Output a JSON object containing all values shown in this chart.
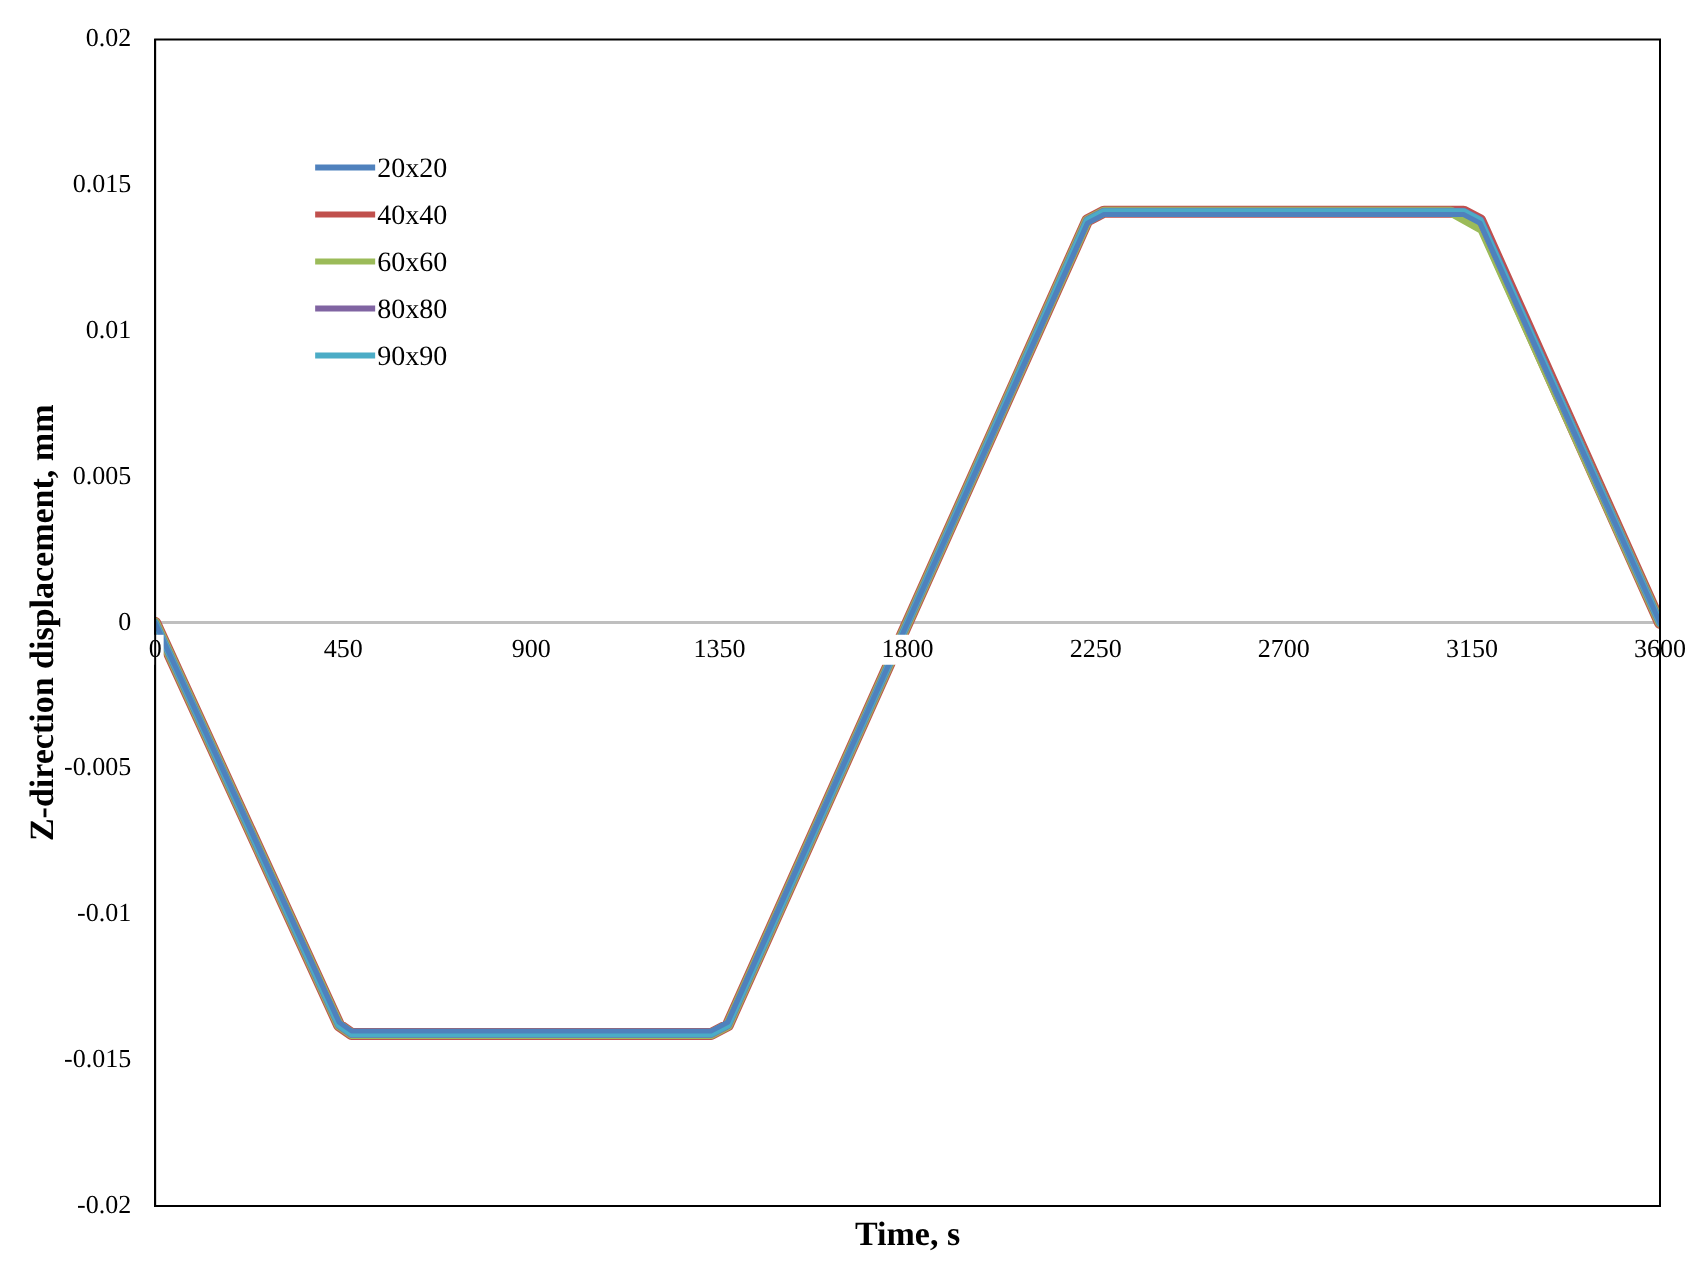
{
  "chart_data": {
    "type": "line",
    "xlabel": "Time, s",
    "ylabel": "Z-direction displacement, mm",
    "xlim": [
      0,
      3600
    ],
    "xticks": [
      0,
      450,
      900,
      1350,
      1800,
      2250,
      2700,
      3150,
      3600
    ],
    "ylim": [
      -0.02,
      0.02
    ],
    "yticks": [
      -0.02,
      -0.015,
      -0.01,
      -0.005,
      0,
      0.005,
      0.01,
      0.015,
      0.02
    ],
    "grid": false,
    "legend": "top left",
    "marker": "none",
    "line_style": "solid",
    "series": [
      {
        "name": "20x20",
        "color": "#4f81bd",
        "x": [
          0,
          440,
          470,
          1330,
          1370,
          2230,
          2270,
          3130,
          3170,
          3600
        ],
        "values": [
          0,
          -0.0137,
          -0.014,
          -0.014,
          -0.0137,
          0.0137,
          0.014,
          0.014,
          0.0137,
          0
        ]
      },
      {
        "name": "40x40",
        "color": "#c0504d",
        "x": [
          0,
          440,
          470,
          1330,
          1370,
          2230,
          2270,
          3130,
          3170,
          3600
        ],
        "values": [
          0,
          -0.0138,
          -0.0141,
          -0.0141,
          -0.0138,
          0.0138,
          0.0141,
          0.0141,
          0.0138,
          0
        ]
      },
      {
        "name": "60x60",
        "color": "#9bbb59",
        "x": [
          0,
          440,
          470,
          1330,
          1370,
          2230,
          2270,
          3100,
          3175,
          3600
        ],
        "values": [
          0,
          -0.0138,
          -0.0141,
          -0.0141,
          -0.0138,
          0.0138,
          0.0141,
          0.0141,
          0.0135,
          0
        ]
      },
      {
        "name": "80x80",
        "color": "#8064a2",
        "x": [
          0,
          440,
          470,
          1330,
          1370,
          2230,
          2270,
          3130,
          3170,
          3600
        ],
        "values": [
          0,
          -0.0138,
          -0.0141,
          -0.0141,
          -0.0138,
          0.0138,
          0.0141,
          0.0141,
          0.0138,
          0
        ]
      },
      {
        "name": "90x90",
        "color": "#4bacc6",
        "x": [
          0,
          440,
          470,
          1330,
          1370,
          2230,
          2270,
          3130,
          3170,
          3600
        ],
        "values": [
          0,
          -0.0138,
          -0.0141,
          -0.0141,
          -0.0138,
          0.0138,
          0.0141,
          0.0141,
          0.0138,
          0
        ]
      }
    ]
  }
}
